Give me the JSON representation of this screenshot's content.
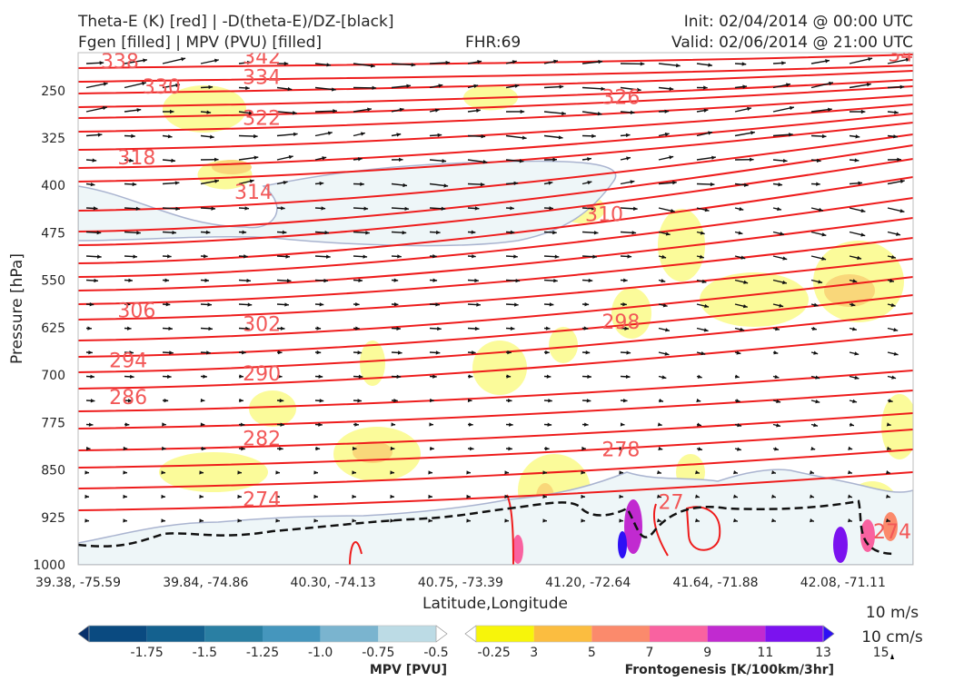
{
  "header": {
    "title_line1": "Theta-E (K) [red] | -D(theta-E)/DZ-[black]",
    "title_line2": "Fgen [filled] | MPV (PVU) [filled]",
    "fhr": "FHR:69",
    "init": "Init: 02/04/2014 @ 00:00 UTC",
    "valid": "Valid: 02/06/2014 @ 21:00 UTC"
  },
  "chart_data": {
    "type": "cross-section",
    "xlabel": "Latitude,Longitude",
    "ylabel": "Pressure [hPa]",
    "x_ticks": [
      "39.38, -75.59",
      "39.84, -74.86",
      "40.30, -74.13",
      "40.75, -73.39",
      "41.20, -72.64",
      "41.64, -71.88",
      "42.08, -71.11"
    ],
    "y_ticks": [
      250,
      325,
      400,
      475,
      550,
      625,
      700,
      775,
      850,
      925,
      1000
    ],
    "ylim": [
      1000,
      190
    ],
    "theta_e_labels": [
      {
        "v": "338",
        "x": 0.05,
        "p": 203
      },
      {
        "v": "342",
        "x": 0.22,
        "p": 196
      },
      {
        "v": "34",
        "x": 0.985,
        "p": 192
      },
      {
        "v": "334",
        "x": 0.22,
        "p": 228
      },
      {
        "v": "330",
        "x": 0.1,
        "p": 243
      },
      {
        "v": "326",
        "x": 0.65,
        "p": 260
      },
      {
        "v": "322",
        "x": 0.22,
        "p": 293
      },
      {
        "v": "318",
        "x": 0.07,
        "p": 355
      },
      {
        "v": "314",
        "x": 0.21,
        "p": 410
      },
      {
        "v": "310",
        "x": 0.63,
        "p": 445
      },
      {
        "v": "306",
        "x": 0.07,
        "p": 597
      },
      {
        "v": "302",
        "x": 0.22,
        "p": 619
      },
      {
        "v": "298",
        "x": 0.65,
        "p": 615
      },
      {
        "v": "294",
        "x": 0.06,
        "p": 676
      },
      {
        "v": "290",
        "x": 0.22,
        "p": 697
      },
      {
        "v": "286",
        "x": 0.06,
        "p": 734
      },
      {
        "v": "282",
        "x": 0.22,
        "p": 800
      },
      {
        "v": "278",
        "x": 0.65,
        "p": 817
      },
      {
        "v": "274",
        "x": 0.22,
        "p": 896
      },
      {
        "v": "27",
        "x": 0.71,
        "p": 900
      },
      {
        "v": "274",
        "x": 0.975,
        "p": 947
      }
    ],
    "legend_vectors": {
      "horizontal": "10 m/s",
      "vertical": "10 cm/s"
    },
    "mpv_colorbar": {
      "label": "MPV [PVU]",
      "ticks": [
        "-1.75",
        "-1.5",
        "-1.25",
        "-1.0",
        "-0.75",
        "-0.5",
        "-0.25"
      ],
      "colors": [
        "#08306b",
        "#0a4a80",
        "#14618f",
        "#2a7fa3",
        "#4596bd",
        "#7ab4cf",
        "#bcdbe5",
        "#ffffff"
      ]
    },
    "fgen_colorbar": {
      "label": "Frontogenesis [K/100km/3hr]",
      "ticks": [
        "3",
        "5",
        "7",
        "9",
        "11",
        "13",
        "15"
      ],
      "colors": [
        "#ffffff",
        "#f7f50a",
        "#fbbd40",
        "#fb8a6c",
        "#f962a0",
        "#c12ad0",
        "#7b12ef",
        "#2d10f5"
      ]
    },
    "grid": false
  }
}
